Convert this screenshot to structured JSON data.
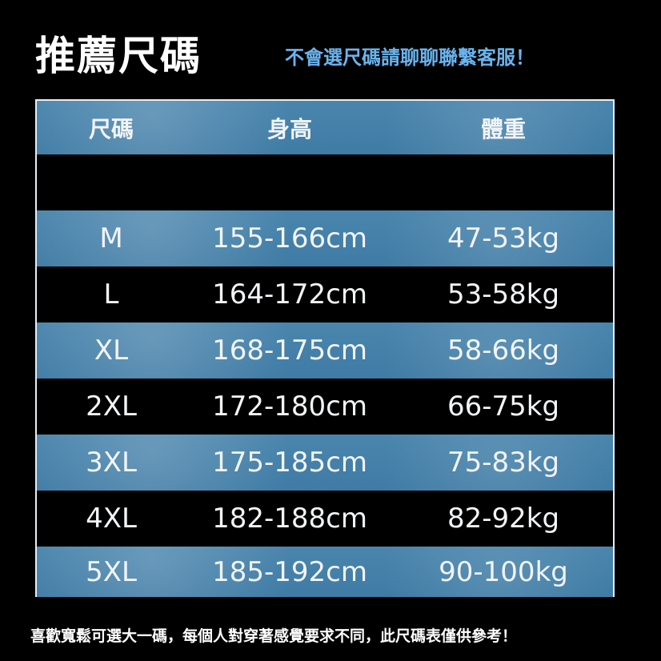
{
  "title": "推薦尺碼",
  "subtitle": "不會選尺碼請聊聊聯繫客服！",
  "colors": {
    "accent": "#6ab4ee",
    "row_blue": "#4580a8",
    "row_black": "#000000"
  },
  "table": {
    "headers": [
      "尺碼",
      "身高",
      "體重"
    ],
    "rows": [
      {
        "size": "",
        "height": "",
        "weight": ""
      },
      {
        "size": "M",
        "height": "155-166cm",
        "weight": "47-53kg"
      },
      {
        "size": "L",
        "height": "164-172cm",
        "weight": "53-58kg"
      },
      {
        "size": "XL",
        "height": "168-175cm",
        "weight": "58-66kg"
      },
      {
        "size": "2XL",
        "height": "172-180cm",
        "weight": "66-75kg"
      },
      {
        "size": "3XL",
        "height": "175-185cm",
        "weight": "75-83kg"
      },
      {
        "size": "4XL",
        "height": "182-188cm",
        "weight": "82-92kg"
      },
      {
        "size": "5XL",
        "height": "185-192cm",
        "weight": "90-100kg"
      }
    ]
  },
  "footer": "喜歡寬鬆可選大一碼，每個人對穿著感覺要求不同，此尺碼表僅供參考！"
}
